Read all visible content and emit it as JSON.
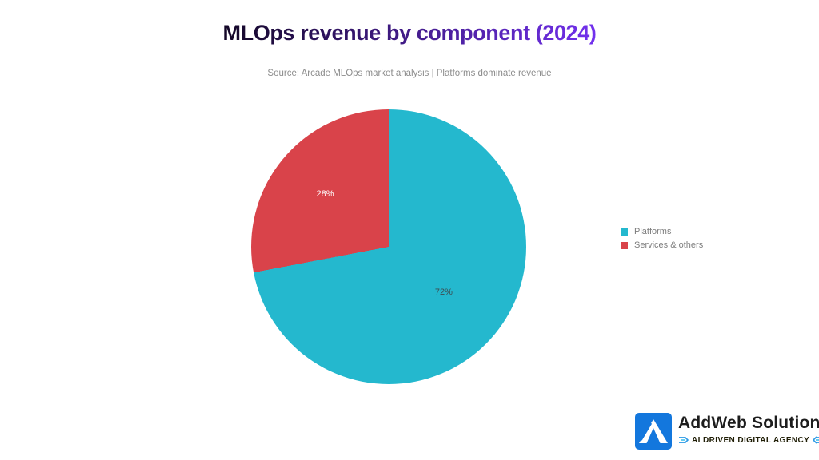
{
  "title": {
    "text": "MLOps revenue by component (2024)",
    "gradient_from": "#130726",
    "gradient_to": "#7230ee"
  },
  "subtitle": "Source: Arcade MLOps market analysis | Platforms dominate revenue",
  "chart_data": {
    "type": "pie",
    "title": "MLOps revenue by component (2024)",
    "categories": [
      "Platforms",
      "Services & others"
    ],
    "values": [
      72,
      28
    ],
    "labels": [
      "72%",
      "28%"
    ],
    "colors": [
      "#24b8ce",
      "#d9434a"
    ],
    "label_colors": [
      "#3d4b50",
      "#ffffff"
    ],
    "label_radius_fractions": [
      0.52,
      0.6
    ],
    "start_angle_deg": 0,
    "direction": "clockwise",
    "legend_position": "right",
    "grid": false
  },
  "brand": {
    "name": "AddWeb Solution",
    "tagline": "AI DRIVEN DIGITAL AGENCY",
    "icon_color": "#1377dd",
    "accent_blue": "#2e9ae6",
    "accent_cyan": "#55c8ef"
  }
}
